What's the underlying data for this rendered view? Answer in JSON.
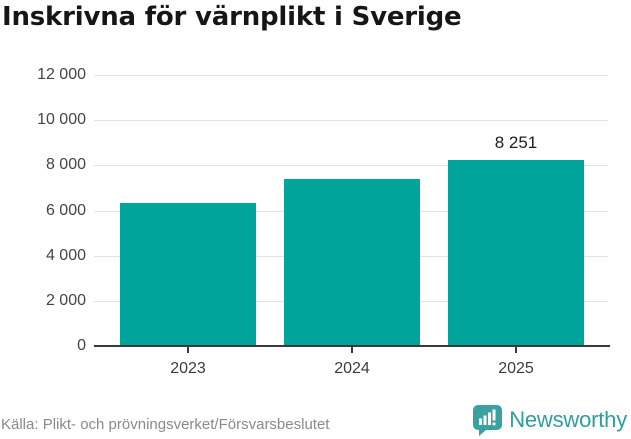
{
  "title": "Inskrivna för värnplikt i Sverige",
  "chart_data": {
    "type": "bar",
    "title": "Inskrivna för värnplikt i Sverige",
    "categories": [
      "2023",
      "2024",
      "2025"
    ],
    "values": [
      6350,
      7400,
      8251
    ],
    "value_labels": [
      "",
      "",
      "8 251"
    ],
    "xlabel": "",
    "ylabel": "",
    "ylim": [
      0,
      12000
    ],
    "ytick_interval": 2000,
    "ytick_labels": [
      "0",
      "2 000",
      "4 000",
      "6 000",
      "8 000",
      "10 000",
      "12 000"
    ],
    "grid": true,
    "legend": false,
    "bar_color": "#00a49b",
    "gridline_color": "#e2e2e2",
    "axis_color": "#3a3a3a"
  },
  "footer": {
    "source": "Källa: Plikt- och prövningsverket/Försvarsbeslutet",
    "brand": "Newsworthy",
    "brand_color": "#2f9e9e",
    "logo_color": "#3aa1a1"
  }
}
